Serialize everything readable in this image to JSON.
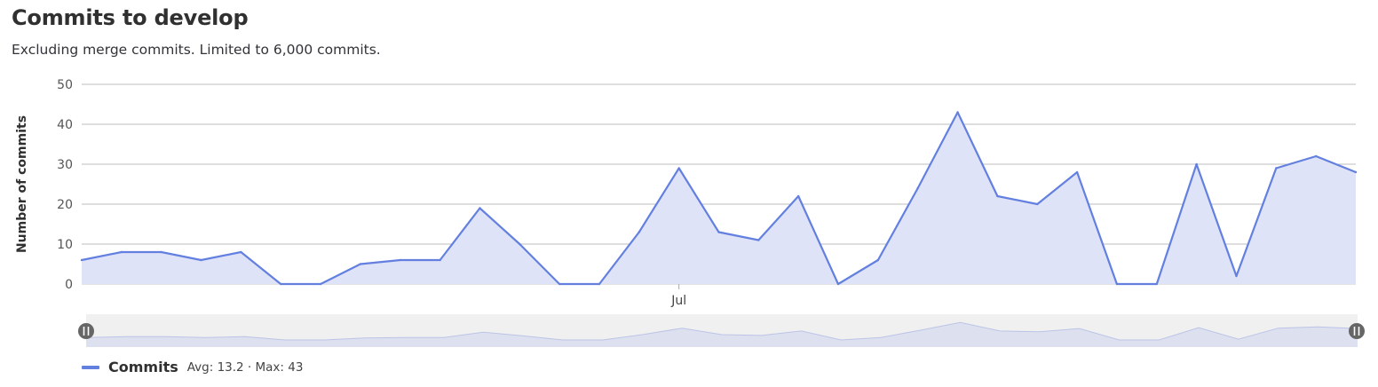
{
  "header": {
    "title": "Commits to develop",
    "subtitle": "Excluding merge commits. Limited to 6,000 commits."
  },
  "colors": {
    "line": "#6380e0",
    "area": "#dfe3f7",
    "grid": "#bdbdbd",
    "navigator_bg": "#f0f0f0",
    "navigator_area": "#dde1ef",
    "handle": "#666666"
  },
  "legend": {
    "series_name": "Commits",
    "avg_label": "Avg: 13.2",
    "separator": " · ",
    "max_label": "Max: 43"
  },
  "chart_data": {
    "type": "area",
    "title": "Commits to develop",
    "subtitle": "Excluding merge commits. Limited to 6,000 commits.",
    "ylabel": "Number of commits",
    "xlabel": "",
    "ylim": [
      0,
      50
    ],
    "yticks": [
      0,
      10,
      20,
      30,
      40,
      50
    ],
    "xticks": [
      {
        "label": "Jul",
        "index": 15
      }
    ],
    "grid": true,
    "legend_position": "bottom-left",
    "series": [
      {
        "name": "Commits",
        "values": [
          6,
          8,
          8,
          6,
          8,
          0,
          0,
          5,
          6,
          6,
          19,
          10,
          0,
          0,
          13,
          29,
          13,
          11,
          22,
          0,
          6,
          24,
          43,
          22,
          20,
          28,
          0,
          0,
          30,
          2,
          29,
          32,
          28
        ]
      }
    ],
    "summary": {
      "avg": 13.2,
      "max": 43
    },
    "navigator": true
  }
}
